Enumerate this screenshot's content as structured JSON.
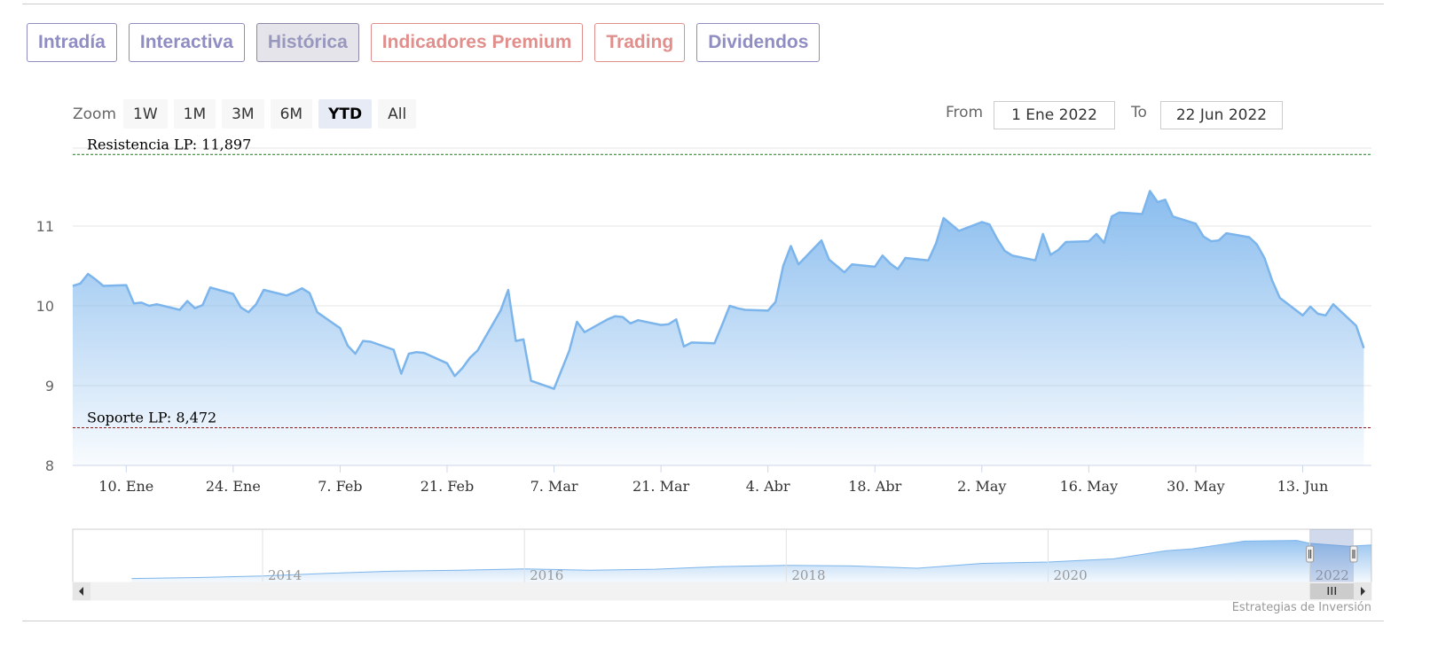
{
  "tabs": [
    {
      "label": "Intradía",
      "color": "#8f8dc2",
      "active": false
    },
    {
      "label": "Interactiva",
      "color": "#8f8dc2",
      "active": false
    },
    {
      "label": "Histórica",
      "color": "#8f8dc2",
      "active": true
    },
    {
      "label": "Indicadores Premium",
      "color": "#e08f8c",
      "active": false
    },
    {
      "label": "Trading",
      "color": "#e08f8c",
      "active": false
    },
    {
      "label": "Dividendos",
      "color": "#8f8dc2",
      "active": false
    }
  ],
  "zoom": {
    "label": "Zoom",
    "buttons": [
      "1W",
      "1M",
      "3M",
      "6M",
      "YTD",
      "All"
    ],
    "selected": "YTD"
  },
  "range": {
    "from_label": "From",
    "from_value": "1 Ene 2022",
    "to_label": "To",
    "to_value": "22 Jun 2022"
  },
  "credit": "Estrategias de Inversión",
  "colors": {
    "line": "#7cb5ec",
    "resistance": "#1a7a1a",
    "support": "#8b1a1a"
  },
  "chart_data": {
    "type": "area",
    "ylim": [
      8,
      12
    ],
    "y_ticks": [
      8,
      9,
      10,
      11
    ],
    "grid": true,
    "x_ticks": [
      {
        "label": "10. Ene",
        "date": "2022-01-10"
      },
      {
        "label": "24. Ene",
        "date": "2022-01-24"
      },
      {
        "label": "7. Feb",
        "date": "2022-02-07"
      },
      {
        "label": "21. Feb",
        "date": "2022-02-21"
      },
      {
        "label": "7. Mar",
        "date": "2022-03-07"
      },
      {
        "label": "21. Mar",
        "date": "2022-03-21"
      },
      {
        "label": "4. Abr",
        "date": "2022-04-04"
      },
      {
        "label": "18. Abr",
        "date": "2022-04-18"
      },
      {
        "label": "2. May",
        "date": "2022-05-02"
      },
      {
        "label": "16. May",
        "date": "2022-05-16"
      },
      {
        "label": "30. May",
        "date": "2022-05-30"
      },
      {
        "label": "13. Jun",
        "date": "2022-06-13"
      }
    ],
    "x_range": [
      "2022-01-03",
      "2022-06-22"
    ],
    "lines": [
      {
        "label": "Resistencia LP: 11,897",
        "value": 11.897,
        "style": "dashed",
        "color": "#1a7a1a"
      },
      {
        "label": "Soporte LP: 8,472",
        "value": 8.472,
        "style": "dashed",
        "color": "#8b1a1a"
      }
    ],
    "series": [
      {
        "points": [
          [
            "2022-01-03",
            10.25
          ],
          [
            "2022-01-04",
            10.28
          ],
          [
            "2022-01-05",
            10.4
          ],
          [
            "2022-01-06",
            10.33
          ],
          [
            "2022-01-07",
            10.25
          ],
          [
            "2022-01-10",
            10.26
          ],
          [
            "2022-01-11",
            10.03
          ],
          [
            "2022-01-12",
            10.04
          ],
          [
            "2022-01-13",
            10.0
          ],
          [
            "2022-01-14",
            10.02
          ],
          [
            "2022-01-17",
            9.95
          ],
          [
            "2022-01-18",
            10.06
          ],
          [
            "2022-01-19",
            9.97
          ],
          [
            "2022-01-20",
            10.01
          ],
          [
            "2022-01-21",
            10.23
          ],
          [
            "2022-01-24",
            10.15
          ],
          [
            "2022-01-25",
            9.98
          ],
          [
            "2022-01-26",
            9.92
          ],
          [
            "2022-01-27",
            10.02
          ],
          [
            "2022-01-28",
            10.2
          ],
          [
            "2022-01-31",
            10.13
          ],
          [
            "2022-02-01",
            10.17
          ],
          [
            "2022-02-02",
            10.22
          ],
          [
            "2022-02-03",
            10.16
          ],
          [
            "2022-02-04",
            9.92
          ],
          [
            "2022-02-07",
            9.72
          ],
          [
            "2022-02-08",
            9.5
          ],
          [
            "2022-02-09",
            9.4
          ],
          [
            "2022-02-10",
            9.56
          ],
          [
            "2022-02-11",
            9.55
          ],
          [
            "2022-02-14",
            9.45
          ],
          [
            "2022-02-15",
            9.15
          ],
          [
            "2022-02-16",
            9.4
          ],
          [
            "2022-02-17",
            9.42
          ],
          [
            "2022-02-18",
            9.41
          ],
          [
            "2022-02-21",
            9.28
          ],
          [
            "2022-02-22",
            9.12
          ],
          [
            "2022-02-23",
            9.22
          ],
          [
            "2022-02-24",
            9.35
          ],
          [
            "2022-02-25",
            9.44
          ],
          [
            "2022-02-28",
            9.94
          ],
          [
            "2022-03-01",
            10.2
          ],
          [
            "2022-03-02",
            9.56
          ],
          [
            "2022-03-03",
            9.58
          ],
          [
            "2022-03-04",
            9.06
          ],
          [
            "2022-03-07",
            8.96
          ],
          [
            "2022-03-08",
            9.2
          ],
          [
            "2022-03-09",
            9.44
          ],
          [
            "2022-03-10",
            9.8
          ],
          [
            "2022-03-11",
            9.67
          ],
          [
            "2022-03-14",
            9.83
          ],
          [
            "2022-03-15",
            9.87
          ],
          [
            "2022-03-16",
            9.86
          ],
          [
            "2022-03-17",
            9.78
          ],
          [
            "2022-03-18",
            9.82
          ],
          [
            "2022-03-21",
            9.76
          ],
          [
            "2022-03-22",
            9.77
          ],
          [
            "2022-03-23",
            9.83
          ],
          [
            "2022-03-24",
            9.49
          ],
          [
            "2022-03-25",
            9.54
          ],
          [
            "2022-03-28",
            9.53
          ],
          [
            "2022-03-29",
            9.76
          ],
          [
            "2022-03-30",
            10.0
          ],
          [
            "2022-03-31",
            9.97
          ],
          [
            "2022-04-01",
            9.95
          ],
          [
            "2022-04-04",
            9.94
          ],
          [
            "2022-04-05",
            10.05
          ],
          [
            "2022-04-06",
            10.5
          ],
          [
            "2022-04-07",
            10.75
          ],
          [
            "2022-04-08",
            10.52
          ],
          [
            "2022-04-11",
            10.82
          ],
          [
            "2022-04-12",
            10.58
          ],
          [
            "2022-04-13",
            10.5
          ],
          [
            "2022-04-14",
            10.42
          ],
          [
            "2022-04-15",
            10.52
          ],
          [
            "2022-04-18",
            10.49
          ],
          [
            "2022-04-19",
            10.63
          ],
          [
            "2022-04-20",
            10.53
          ],
          [
            "2022-04-21",
            10.46
          ],
          [
            "2022-04-22",
            10.6
          ],
          [
            "2022-04-25",
            10.57
          ],
          [
            "2022-04-26",
            10.78
          ],
          [
            "2022-04-27",
            11.1
          ],
          [
            "2022-04-28",
            11.02
          ],
          [
            "2022-04-29",
            10.94
          ],
          [
            "2022-05-02",
            11.05
          ],
          [
            "2022-05-03",
            11.02
          ],
          [
            "2022-05-04",
            10.84
          ],
          [
            "2022-05-05",
            10.69
          ],
          [
            "2022-05-06",
            10.63
          ],
          [
            "2022-05-09",
            10.57
          ],
          [
            "2022-05-10",
            10.9
          ],
          [
            "2022-05-11",
            10.64
          ],
          [
            "2022-05-12",
            10.7
          ],
          [
            "2022-05-13",
            10.8
          ],
          [
            "2022-05-16",
            10.81
          ],
          [
            "2022-05-17",
            10.9
          ],
          [
            "2022-05-18",
            10.79
          ],
          [
            "2022-05-19",
            11.12
          ],
          [
            "2022-05-20",
            11.17
          ],
          [
            "2022-05-23",
            11.15
          ],
          [
            "2022-05-24",
            11.44
          ],
          [
            "2022-05-25",
            11.3
          ],
          [
            "2022-05-26",
            11.33
          ],
          [
            "2022-05-27",
            11.12
          ],
          [
            "2022-05-30",
            11.03
          ],
          [
            "2022-05-31",
            10.87
          ],
          [
            "2022-06-01",
            10.81
          ],
          [
            "2022-06-02",
            10.82
          ],
          [
            "2022-06-03",
            10.91
          ],
          [
            "2022-06-06",
            10.86
          ],
          [
            "2022-06-07",
            10.77
          ],
          [
            "2022-06-08",
            10.6
          ],
          [
            "2022-06-09",
            10.32
          ],
          [
            "2022-06-10",
            10.1
          ],
          [
            "2022-06-13",
            9.88
          ],
          [
            "2022-06-14",
            9.99
          ],
          [
            "2022-06-15",
            9.9
          ],
          [
            "2022-06-16",
            9.88
          ],
          [
            "2022-06-17",
            10.02
          ],
          [
            "2022-06-20",
            9.75
          ],
          [
            "2022-06-21",
            9.47
          ]
        ]
      }
    ]
  },
  "navigator": {
    "year_labels": [
      "2014",
      "2016",
      "2018",
      "2020",
      "2022"
    ],
    "range_start": "2013",
    "range_end": "2022",
    "overview": [
      [
        2013.0,
        1.2
      ],
      [
        2013.5,
        1.5
      ],
      [
        2014.0,
        2.0
      ],
      [
        2014.5,
        2.8
      ],
      [
        2015.0,
        3.5
      ],
      [
        2015.5,
        3.8
      ],
      [
        2016.0,
        4.2
      ],
      [
        2016.5,
        3.8
      ],
      [
        2017.0,
        4.1
      ],
      [
        2017.5,
        4.9
      ],
      [
        2018.0,
        5.3
      ],
      [
        2018.5,
        5.1
      ],
      [
        2019.0,
        4.4
      ],
      [
        2019.5,
        5.9
      ],
      [
        2020.0,
        6.3
      ],
      [
        2020.5,
        7.3
      ],
      [
        2020.9,
        9.8
      ],
      [
        2021.1,
        10.4
      ],
      [
        2021.5,
        12.8
      ],
      [
        2021.9,
        13.0
      ],
      [
        2022.0,
        12.1
      ],
      [
        2022.3,
        11.2
      ],
      [
        2022.47,
        11.6
      ]
    ]
  }
}
